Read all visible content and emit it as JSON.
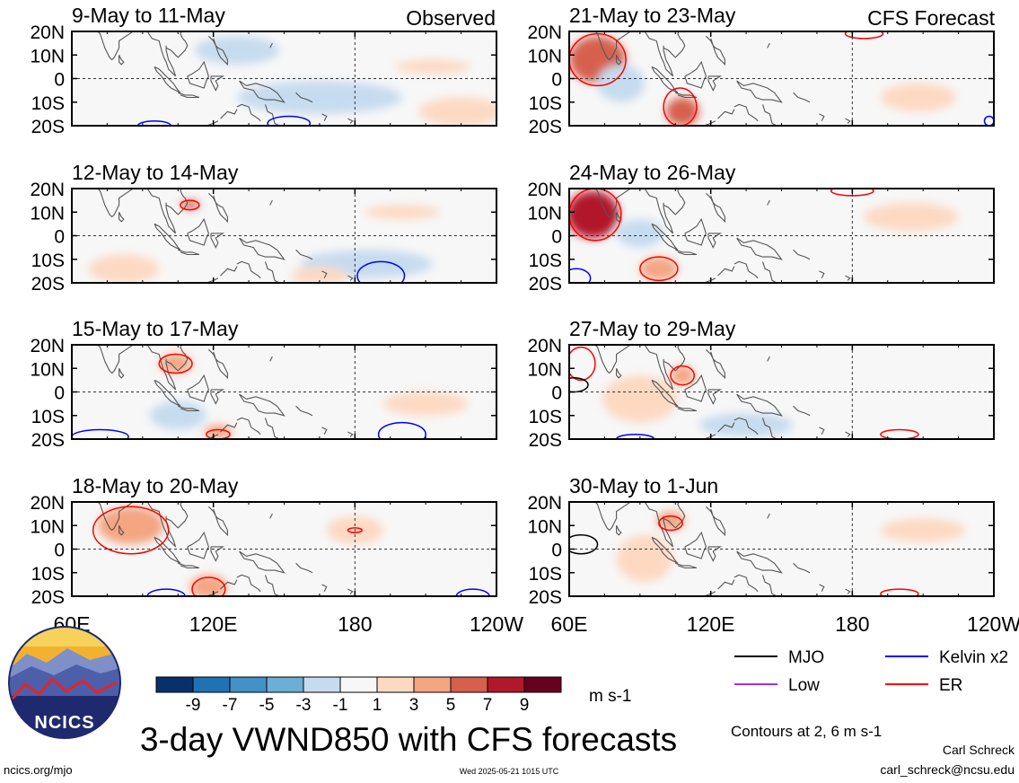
{
  "header": {
    "left_label": "Observed",
    "right_label": "CFS Forecast"
  },
  "chart_data": [
    {
      "type": "heatmap",
      "panel": "observed",
      "title": "9-May to 11-May",
      "x_ticks": [
        "60E",
        "120E",
        "180",
        "120W"
      ],
      "y_ticks": [
        "20N",
        "10N",
        "0",
        "10S",
        "20S"
      ],
      "ylim": [
        -20,
        20
      ],
      "xlim": [
        60,
        240
      ],
      "features": [
        {
          "kind": "fill",
          "lon": 165,
          "lat": -8,
          "value": -3,
          "rx": 35,
          "ry": 7
        },
        {
          "kind": "fill",
          "lon": 130,
          "lat": 12,
          "value": -3,
          "rx": 18,
          "ry": 6
        },
        {
          "kind": "fill",
          "lon": 88,
          "lat": 15,
          "value": -1,
          "rx": 16,
          "ry": 6
        },
        {
          "kind": "fill",
          "lon": 213,
          "lat": 5,
          "value": 1,
          "rx": 16,
          "ry": 3
        },
        {
          "kind": "fill",
          "lon": 225,
          "lat": -14,
          "value": 1,
          "rx": 18,
          "ry": 6
        },
        {
          "kind": "contour",
          "lon": 95,
          "lat": -20,
          "value": 2,
          "rx": 7,
          "ry": 2,
          "color": "blue"
        },
        {
          "kind": "contour",
          "lon": 152,
          "lat": -19,
          "value": 2,
          "rx": 9,
          "ry": 3,
          "color": "blue"
        }
      ]
    },
    {
      "type": "heatmap",
      "panel": "observed",
      "title": "12-May to 14-May",
      "x_ticks": [
        "60E",
        "120E",
        "180",
        "120W"
      ],
      "y_ticks": [
        "20N",
        "10N",
        "0",
        "10S",
        "20S"
      ],
      "ylim": [
        -20,
        20
      ],
      "xlim": [
        60,
        240
      ],
      "features": [
        {
          "kind": "fill",
          "lon": 185,
          "lat": -12,
          "value": -3,
          "rx": 28,
          "ry": 6
        },
        {
          "kind": "fill",
          "lon": 95,
          "lat": 5,
          "value": -1,
          "rx": 18,
          "ry": 6
        },
        {
          "kind": "fill",
          "lon": 110,
          "lat": 13,
          "value": 5,
          "rx": 4,
          "ry": 2
        },
        {
          "kind": "fill",
          "lon": 82,
          "lat": -14,
          "value": 1,
          "rx": 15,
          "ry": 6
        },
        {
          "kind": "fill",
          "lon": 200,
          "lat": 10,
          "value": 1,
          "rx": 16,
          "ry": 3
        },
        {
          "kind": "fill",
          "lon": 165,
          "lat": -17,
          "value": 1,
          "rx": 12,
          "ry": 4
        },
        {
          "kind": "contour",
          "lon": 110,
          "lat": 13,
          "value": 2,
          "rx": 4,
          "ry": 2,
          "color": "red"
        },
        {
          "kind": "contour",
          "lon": 191,
          "lat": -17,
          "value": 2,
          "rx": 10,
          "ry": 6,
          "color": "blue"
        }
      ]
    },
    {
      "type": "heatmap",
      "panel": "observed",
      "title": "15-May to 17-May",
      "x_ticks": [
        "60E",
        "120E",
        "180",
        "120W"
      ],
      "y_ticks": [
        "20N",
        "10N",
        "0",
        "10S",
        "20S"
      ],
      "ylim": [
        -20,
        20
      ],
      "xlim": [
        60,
        240
      ],
      "features": [
        {
          "kind": "fill",
          "lon": 105,
          "lat": -10,
          "value": -3,
          "rx": 12,
          "ry": 6
        },
        {
          "kind": "fill",
          "lon": 165,
          "lat": 10,
          "value": -1,
          "rx": 22,
          "ry": 6
        },
        {
          "kind": "fill",
          "lon": 72,
          "lat": 8,
          "value": -1,
          "rx": 12,
          "ry": 5
        },
        {
          "kind": "fill",
          "lon": 104,
          "lat": 12,
          "value": 3,
          "rx": 7,
          "ry": 4
        },
        {
          "kind": "fill",
          "lon": 122,
          "lat": -17,
          "value": 3,
          "rx": 6,
          "ry": 3
        },
        {
          "kind": "fill",
          "lon": 210,
          "lat": -5,
          "value": 1,
          "rx": 18,
          "ry": 5
        },
        {
          "kind": "contour",
          "lon": 104,
          "lat": 12,
          "value": 2,
          "rx": 7,
          "ry": 4,
          "color": "red"
        },
        {
          "kind": "contour",
          "lon": 122,
          "lat": -18,
          "value": 2,
          "rx": 5,
          "ry": 2,
          "color": "red"
        },
        {
          "kind": "contour",
          "lon": 72,
          "lat": -19,
          "value": 2,
          "rx": 12,
          "ry": 3,
          "color": "blue"
        },
        {
          "kind": "contour",
          "lon": 200,
          "lat": -18,
          "value": 2,
          "rx": 10,
          "ry": 5,
          "color": "blue"
        }
      ]
    },
    {
      "type": "heatmap",
      "panel": "observed",
      "title": "18-May to 20-May",
      "x_ticks": [
        "60E",
        "120E",
        "180",
        "120W"
      ],
      "y_ticks": [
        "20N",
        "10N",
        "0",
        "10S",
        "20S"
      ],
      "ylim": [
        -20,
        20
      ],
      "xlim": [
        60,
        240
      ],
      "features": [
        {
          "kind": "fill",
          "lon": 85,
          "lat": 10,
          "value": 3,
          "rx": 14,
          "ry": 8
        },
        {
          "kind": "fill",
          "lon": 118,
          "lat": -16,
          "value": 3,
          "rx": 8,
          "ry": 5
        },
        {
          "kind": "fill",
          "lon": 180,
          "lat": 8,
          "value": 1,
          "rx": 12,
          "ry": 6
        },
        {
          "kind": "fill",
          "lon": 150,
          "lat": -12,
          "value": -1,
          "rx": 22,
          "ry": 6
        },
        {
          "kind": "fill",
          "lon": 220,
          "lat": 10,
          "value": -1,
          "rx": 16,
          "ry": 6
        },
        {
          "kind": "contour",
          "lon": 85,
          "lat": 8,
          "value": 2,
          "rx": 16,
          "ry": 10,
          "color": "red"
        },
        {
          "kind": "contour",
          "lon": 180,
          "lat": 8,
          "value": 2,
          "rx": 3,
          "ry": 1,
          "color": "red"
        },
        {
          "kind": "contour",
          "lon": 118,
          "lat": -17,
          "value": 2,
          "rx": 7,
          "ry": 5,
          "color": "red"
        },
        {
          "kind": "contour",
          "lon": 100,
          "lat": -20,
          "value": 2,
          "rx": 8,
          "ry": 3,
          "color": "blue"
        },
        {
          "kind": "contour",
          "lon": 230,
          "lat": -20,
          "value": 2,
          "rx": 7,
          "ry": 3,
          "color": "blue"
        }
      ]
    },
    {
      "type": "heatmap",
      "panel": "forecast",
      "title": "21-May to 23-May",
      "x_ticks": [
        "60E",
        "120E",
        "180",
        "120W"
      ],
      "y_ticks": [
        "20N",
        "10N",
        "0",
        "10S",
        "20S"
      ],
      "ylim": [
        -20,
        20
      ],
      "xlim": [
        60,
        240
      ],
      "features": [
        {
          "kind": "fill",
          "lon": 72,
          "lat": 8,
          "value": 5,
          "rx": 12,
          "ry": 10
        },
        {
          "kind": "fill",
          "lon": 108,
          "lat": -14,
          "value": 5,
          "rx": 7,
          "ry": 6
        },
        {
          "kind": "fill",
          "lon": 82,
          "lat": -2,
          "value": -3,
          "rx": 10,
          "ry": 8
        },
        {
          "kind": "fill",
          "lon": 170,
          "lat": 12,
          "value": -1,
          "rx": 18,
          "ry": 6
        },
        {
          "kind": "fill",
          "lon": 208,
          "lat": -8,
          "value": 1,
          "rx": 16,
          "ry": 6
        },
        {
          "kind": "contour",
          "lon": 72,
          "lat": 8,
          "value": 2,
          "rx": 12,
          "ry": 11,
          "color": "red"
        },
        {
          "kind": "contour",
          "lon": 107,
          "lat": -12,
          "value": 2,
          "rx": 7,
          "ry": 8,
          "color": "red"
        },
        {
          "kind": "contour",
          "lon": 185,
          "lat": 19,
          "value": 2,
          "rx": 8,
          "ry": 2,
          "color": "red"
        },
        {
          "kind": "contour",
          "lon": 238,
          "lat": -18,
          "value": 2,
          "rx": 2,
          "ry": 2,
          "color": "blue"
        }
      ]
    },
    {
      "type": "heatmap",
      "panel": "forecast",
      "title": "24-May to 26-May",
      "x_ticks": [
        "60E",
        "120E",
        "180",
        "120W"
      ],
      "y_ticks": [
        "20N",
        "10N",
        "0",
        "10S",
        "20S"
      ],
      "ylim": [
        -20,
        20
      ],
      "xlim": [
        60,
        240
      ],
      "features": [
        {
          "kind": "fill",
          "lon": 70,
          "lat": 9,
          "value": 7,
          "rx": 11,
          "ry": 10
        },
        {
          "kind": "fill",
          "lon": 98,
          "lat": -14,
          "value": 3,
          "rx": 8,
          "ry": 5
        },
        {
          "kind": "fill",
          "lon": 90,
          "lat": 1,
          "value": -3,
          "rx": 10,
          "ry": 6
        },
        {
          "kind": "fill",
          "lon": 150,
          "lat": -14,
          "value": -1,
          "rx": 25,
          "ry": 5
        },
        {
          "kind": "fill",
          "lon": 205,
          "lat": 8,
          "value": 1,
          "rx": 20,
          "ry": 6
        },
        {
          "kind": "contour",
          "lon": 71,
          "lat": 9,
          "value": 2,
          "rx": 11,
          "ry": 11,
          "color": "red"
        },
        {
          "kind": "contour",
          "lon": 98,
          "lat": -14,
          "value": 2,
          "rx": 8,
          "ry": 5,
          "color": "red"
        },
        {
          "kind": "contour",
          "lon": 180,
          "lat": 19,
          "value": 2,
          "rx": 9,
          "ry": 2,
          "color": "red"
        },
        {
          "kind": "contour",
          "lon": 63,
          "lat": -18,
          "value": 2,
          "rx": 6,
          "ry": 4,
          "color": "blue"
        }
      ]
    },
    {
      "type": "heatmap",
      "panel": "forecast",
      "title": "27-May to 29-May",
      "x_ticks": [
        "60E",
        "120E",
        "180",
        "120W"
      ],
      "y_ticks": [
        "20N",
        "10N",
        "0",
        "10S",
        "20S"
      ],
      "ylim": [
        -20,
        20
      ],
      "xlim": [
        60,
        240
      ],
      "features": [
        {
          "kind": "fill",
          "lon": 90,
          "lat": -3,
          "value": 1,
          "rx": 16,
          "ry": 10
        },
        {
          "kind": "fill",
          "lon": 135,
          "lat": -14,
          "value": -3,
          "rx": 20,
          "ry": 5
        },
        {
          "kind": "fill",
          "lon": 200,
          "lat": 8,
          "value": -1,
          "rx": 18,
          "ry": 6
        },
        {
          "kind": "fill",
          "lon": 108,
          "lat": 7,
          "value": 3,
          "rx": 5,
          "ry": 4
        },
        {
          "kind": "contour",
          "lon": 65,
          "lat": 12,
          "value": 2,
          "rx": 6,
          "ry": 7,
          "color": "red"
        },
        {
          "kind": "contour",
          "lon": 108,
          "lat": 7,
          "value": 2,
          "rx": 5,
          "ry": 4,
          "color": "red"
        },
        {
          "kind": "contour",
          "lon": 200,
          "lat": -18,
          "value": 2,
          "rx": 8,
          "ry": 2,
          "color": "red"
        },
        {
          "kind": "contour",
          "lon": 62,
          "lat": 3,
          "value": 2,
          "rx": 6,
          "ry": 3,
          "color": "black"
        },
        {
          "kind": "contour",
          "lon": 88,
          "lat": -20,
          "value": 2,
          "rx": 8,
          "ry": 2,
          "color": "blue"
        }
      ]
    },
    {
      "type": "heatmap",
      "panel": "forecast",
      "title": "30-May to 1-Jun",
      "x_ticks": [
        "60E",
        "120E",
        "180",
        "120W"
      ],
      "y_ticks": [
        "20N",
        "10N",
        "0",
        "10S",
        "20S"
      ],
      "ylim": [
        -20,
        20
      ],
      "xlim": [
        60,
        240
      ],
      "features": [
        {
          "kind": "fill",
          "lon": 103,
          "lat": 12,
          "value": 3,
          "rx": 6,
          "ry": 4
        },
        {
          "kind": "fill",
          "lon": 92,
          "lat": -4,
          "value": 1,
          "rx": 12,
          "ry": 10
        },
        {
          "kind": "fill",
          "lon": 140,
          "lat": -12,
          "value": -1,
          "rx": 22,
          "ry": 6
        },
        {
          "kind": "fill",
          "lon": 210,
          "lat": 8,
          "value": 1,
          "rx": 18,
          "ry": 5
        },
        {
          "kind": "contour",
          "lon": 103,
          "lat": 11,
          "value": 2,
          "rx": 5,
          "ry": 3,
          "color": "red"
        },
        {
          "kind": "contour",
          "lon": 200,
          "lat": -19,
          "value": 2,
          "rx": 8,
          "ry": 2,
          "color": "red"
        },
        {
          "kind": "contour",
          "lon": 65,
          "lat": 2,
          "value": 2,
          "rx": 7,
          "ry": 4,
          "color": "black"
        }
      ]
    }
  ],
  "colorbar": {
    "labels": [
      "-9",
      "-7",
      "-5",
      "-3",
      "-1",
      "1",
      "3",
      "5",
      "7",
      "9"
    ],
    "colors": [
      "#08306b",
      "#2171b5",
      "#4292c6",
      "#6baed6",
      "#c6dbef",
      "#f7f7f7",
      "#fdd9c2",
      "#f4a582",
      "#d6604d",
      "#b2182b",
      "#67001f"
    ],
    "units": "m s-1"
  },
  "legend": {
    "items": [
      {
        "label": "MJO",
        "color": "#000000"
      },
      {
        "label": "Kelvin x2",
        "color": "#0000ff"
      },
      {
        "label": "Low",
        "color": "#9b30ff"
      },
      {
        "label": "ER",
        "color": "#ff0000"
      }
    ],
    "contours_note": "Contours at 2, 6 m s-1"
  },
  "footer": {
    "title": "3-day VWND850 with CFS forecasts",
    "url": "ncics.org/mjo",
    "timestamp": "Wed 2025-05-21 1015 UTC",
    "author": "Carl Schreck",
    "email": "carl_schreck@ncsu.edu",
    "logo_text": "NCICS"
  }
}
